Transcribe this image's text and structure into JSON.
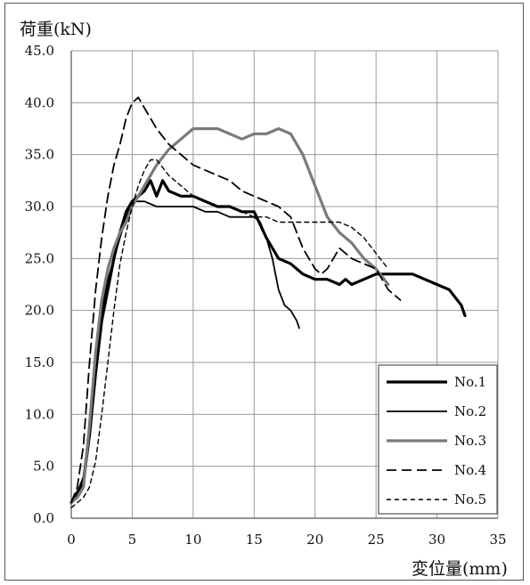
{
  "chart_data": {
    "type": "line",
    "ylabel": "荷重(kN)",
    "xlabel": "変位量(mm)",
    "xlim": [
      0,
      35
    ],
    "ylim": [
      0,
      45
    ],
    "x_ticks": [
      "0",
      "5",
      "10",
      "15",
      "20",
      "25",
      "30",
      "35"
    ],
    "y_ticks": [
      "0.0",
      "5.0",
      "10.0",
      "15.0",
      "20.0",
      "25.0",
      "30.0",
      "35.0",
      "40.0",
      "45.0"
    ],
    "grid": true,
    "legend_position": "bottom-right",
    "series": [
      {
        "name": "No.1",
        "color": "#000000",
        "style": "solid-thick",
        "points": [
          [
            0,
            1.5
          ],
          [
            0.5,
            2.5
          ],
          [
            1,
            3.5
          ],
          [
            1.5,
            8
          ],
          [
            2,
            14
          ],
          [
            2.5,
            19
          ],
          [
            3,
            22
          ],
          [
            3.5,
            25
          ],
          [
            4,
            27.5
          ],
          [
            4.5,
            29.5
          ],
          [
            5,
            30.5
          ],
          [
            5.5,
            31
          ],
          [
            6,
            31.5
          ],
          [
            6.5,
            32.5
          ],
          [
            7,
            31
          ],
          [
            7.5,
            32.5
          ],
          [
            8,
            31.5
          ],
          [
            9,
            31
          ],
          [
            10,
            31
          ],
          [
            11,
            30.5
          ],
          [
            12,
            30
          ],
          [
            13,
            30
          ],
          [
            14,
            29.5
          ],
          [
            15,
            29.5
          ],
          [
            16,
            27
          ],
          [
            17,
            25
          ],
          [
            18,
            24.5
          ],
          [
            19,
            23.5
          ],
          [
            20,
            23
          ],
          [
            21,
            23
          ],
          [
            22,
            22.5
          ],
          [
            22.5,
            23
          ],
          [
            23,
            22.5
          ],
          [
            24,
            23
          ],
          [
            25,
            23.5
          ],
          [
            26,
            23.5
          ],
          [
            27,
            23.5
          ],
          [
            28,
            23.5
          ],
          [
            29,
            23
          ],
          [
            30,
            22.5
          ],
          [
            31,
            22
          ],
          [
            32,
            20.5
          ],
          [
            32.3,
            19.5
          ]
        ]
      },
      {
        "name": "No.2",
        "color": "#000000",
        "style": "solid-thin",
        "points": [
          [
            0,
            1.5
          ],
          [
            0.5,
            2.5
          ],
          [
            1,
            4
          ],
          [
            1.5,
            9
          ],
          [
            2,
            15
          ],
          [
            2.5,
            20
          ],
          [
            3,
            23
          ],
          [
            3.5,
            25
          ],
          [
            4,
            27
          ],
          [
            4.5,
            29
          ],
          [
            5,
            30.5
          ],
          [
            6,
            30.5
          ],
          [
            7,
            30
          ],
          [
            8,
            30
          ],
          [
            9,
            30
          ],
          [
            10,
            30
          ],
          [
            11,
            29.5
          ],
          [
            12,
            29.5
          ],
          [
            13,
            29
          ],
          [
            14,
            29
          ],
          [
            15,
            29
          ],
          [
            15.5,
            28.5
          ],
          [
            16,
            27
          ],
          [
            16.5,
            25
          ],
          [
            17,
            22
          ],
          [
            17.5,
            20.5
          ],
          [
            18,
            20
          ],
          [
            18.5,
            19
          ],
          [
            18.7,
            18.3
          ]
        ]
      },
      {
        "name": "No.3",
        "color": "#7a7a7a",
        "style": "solid-thick",
        "points": [
          [
            0,
            1.5
          ],
          [
            0.5,
            2
          ],
          [
            1,
            3
          ],
          [
            1.5,
            9
          ],
          [
            2,
            16
          ],
          [
            2.5,
            21
          ],
          [
            3,
            24
          ],
          [
            3.5,
            26
          ],
          [
            4,
            27.5
          ],
          [
            4.5,
            28.5
          ],
          [
            5,
            30
          ],
          [
            6,
            32
          ],
          [
            7,
            34
          ],
          [
            8,
            35.5
          ],
          [
            9,
            36.5
          ],
          [
            10,
            37.5
          ],
          [
            11,
            37.5
          ],
          [
            12,
            37.5
          ],
          [
            13,
            37
          ],
          [
            14,
            36.5
          ],
          [
            15,
            37
          ],
          [
            16,
            37
          ],
          [
            17,
            37.5
          ],
          [
            18,
            37
          ],
          [
            19,
            35
          ],
          [
            20,
            32
          ],
          [
            21,
            29
          ],
          [
            22,
            27.5
          ],
          [
            23,
            26.5
          ],
          [
            24,
            25
          ],
          [
            25,
            24
          ],
          [
            26,
            22.5
          ]
        ]
      },
      {
        "name": "No.4",
        "color": "#000000",
        "style": "dash-long",
        "points": [
          [
            0,
            1.5
          ],
          [
            0.5,
            3
          ],
          [
            1,
            7
          ],
          [
            1.5,
            15
          ],
          [
            2,
            22
          ],
          [
            2.5,
            27
          ],
          [
            3,
            31
          ],
          [
            3.5,
            34
          ],
          [
            4,
            36
          ],
          [
            4.5,
            38.5
          ],
          [
            5,
            40
          ],
          [
            5.5,
            40.5
          ],
          [
            6,
            39.5
          ],
          [
            7,
            37.5
          ],
          [
            8,
            36
          ],
          [
            9,
            35
          ],
          [
            10,
            34
          ],
          [
            11,
            33.5
          ],
          [
            12,
            33
          ],
          [
            13,
            32.5
          ],
          [
            14,
            31.5
          ],
          [
            15,
            31
          ],
          [
            16,
            30.5
          ],
          [
            17,
            30
          ],
          [
            18,
            29
          ],
          [
            19,
            26
          ],
          [
            20,
            24
          ],
          [
            20.5,
            23.5
          ],
          [
            21,
            24
          ],
          [
            22,
            26
          ],
          [
            23,
            25
          ],
          [
            24,
            24.5
          ],
          [
            25,
            24
          ],
          [
            26,
            22
          ],
          [
            27,
            21
          ]
        ]
      },
      {
        "name": "No.5",
        "color": "#000000",
        "style": "dash-short",
        "points": [
          [
            0,
            1
          ],
          [
            0.5,
            1.5
          ],
          [
            1,
            2
          ],
          [
            1.5,
            3
          ],
          [
            2,
            5.5
          ],
          [
            2.5,
            10
          ],
          [
            3,
            15
          ],
          [
            3.5,
            20
          ],
          [
            4,
            24.5
          ],
          [
            4.5,
            27.5
          ],
          [
            5,
            30
          ],
          [
            5.5,
            32
          ],
          [
            6,
            33.5
          ],
          [
            6.5,
            34.5
          ],
          [
            7,
            34.5
          ],
          [
            8,
            33
          ],
          [
            9,
            32
          ],
          [
            10,
            31
          ],
          [
            11,
            30.5
          ],
          [
            12,
            30
          ],
          [
            13,
            30
          ],
          [
            14,
            29.5
          ],
          [
            15,
            29
          ],
          [
            16,
            29
          ],
          [
            17,
            28.5
          ],
          [
            18,
            28.5
          ],
          [
            19,
            28.5
          ],
          [
            20,
            28.5
          ],
          [
            21,
            28.5
          ],
          [
            22,
            28.5
          ],
          [
            23,
            28
          ],
          [
            24,
            27
          ],
          [
            25,
            25.5
          ],
          [
            26,
            24
          ]
        ]
      }
    ]
  }
}
